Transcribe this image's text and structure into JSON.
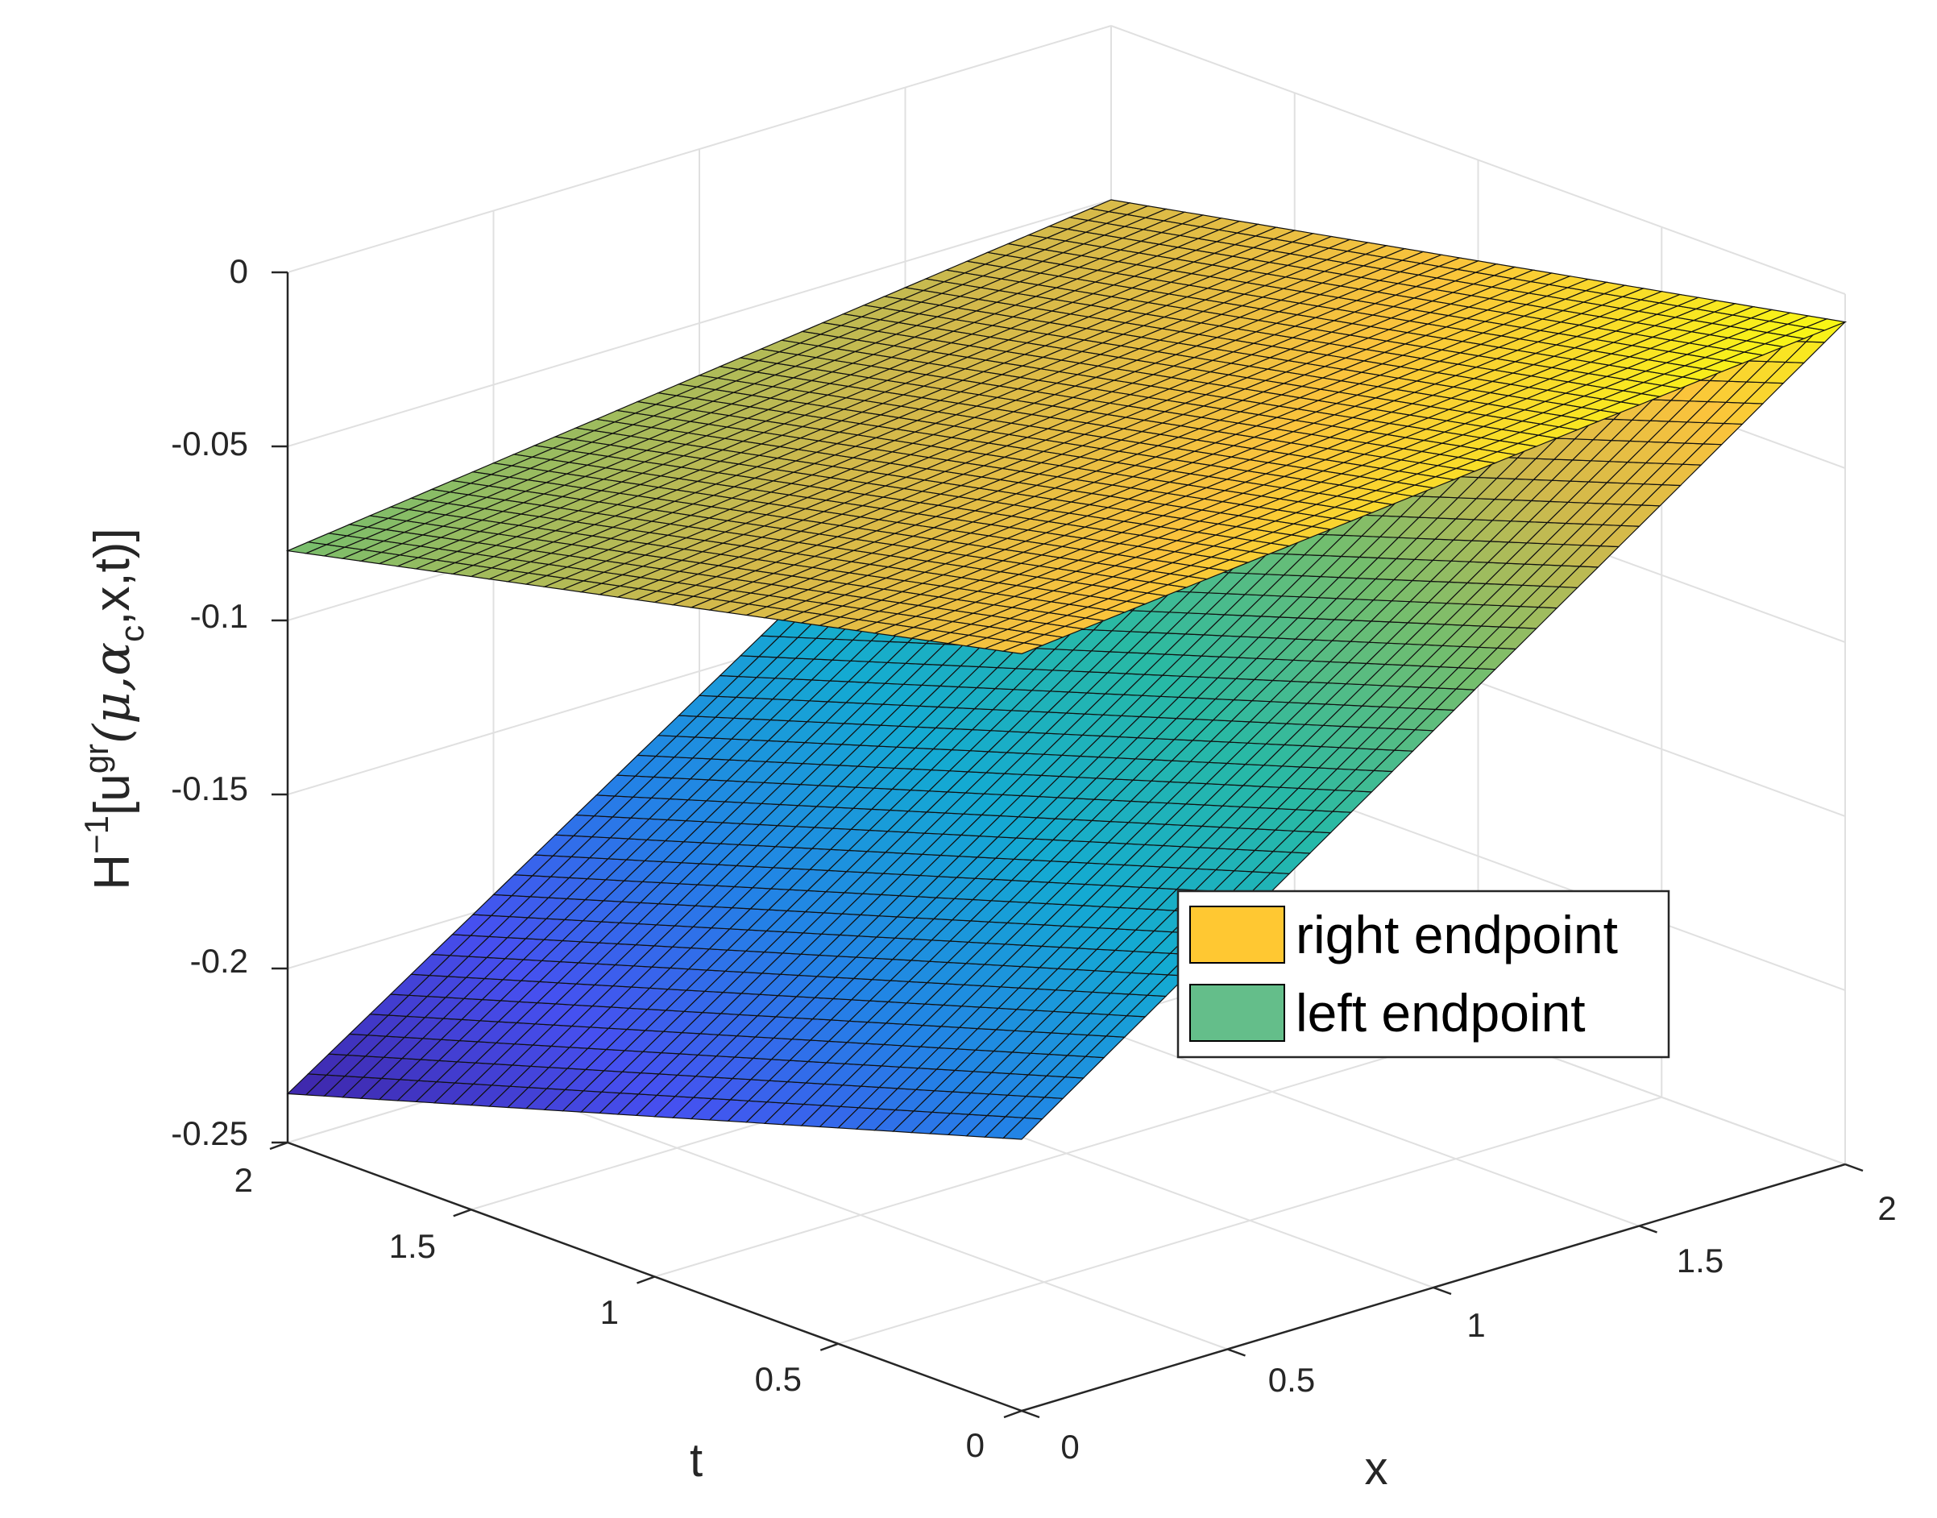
{
  "chart_data": {
    "type": "surface3d",
    "x": {
      "label": "x",
      "range": [
        0,
        2
      ],
      "ticks": [
        "0",
        "0.5",
        "1",
        "1.5",
        "2"
      ]
    },
    "t": {
      "label": "t",
      "range": [
        0,
        2
      ],
      "ticks": [
        "0",
        "0.5",
        "1",
        "1.5",
        "2"
      ]
    },
    "z": {
      "label": "H^{-1}[u^{gr}(μ,α_c,x,t)]",
      "label_parts": {
        "h": "H",
        "hsup": "−1",
        "open": "[u",
        "usup": "gr",
        "mu": "(μ,α",
        "csub": "c",
        "close": ",x,t)]"
      },
      "range": [
        -0.25,
        0
      ],
      "ticks": [
        "0",
        "-0.05",
        "-0.1",
        "-0.15",
        "-0.2",
        "-0.25"
      ]
    },
    "grid": true,
    "legend": {
      "placement": "right-middle",
      "entries": [
        {
          "name": "right endpoint",
          "color": "#ffc832"
        },
        {
          "name": "left endpoint",
          "color": "#64be8a"
        }
      ]
    },
    "series": [
      {
        "name": "right endpoint",
        "corners": {
          "x0_t0": -0.0325,
          "x2_t0": -0.008,
          "x0_t2": -0.08,
          "x2_t2": -0.05
        },
        "colormap": "parula"
      },
      {
        "name": "left endpoint",
        "corners": {
          "x0_t0": -0.172,
          "x2_t0": -0.008,
          "x0_t2": -0.236,
          "x2_t2": -0.078
        },
        "colormap": "parula"
      }
    ],
    "colormap_range": [
      -0.236,
      -0.008
    ]
  }
}
